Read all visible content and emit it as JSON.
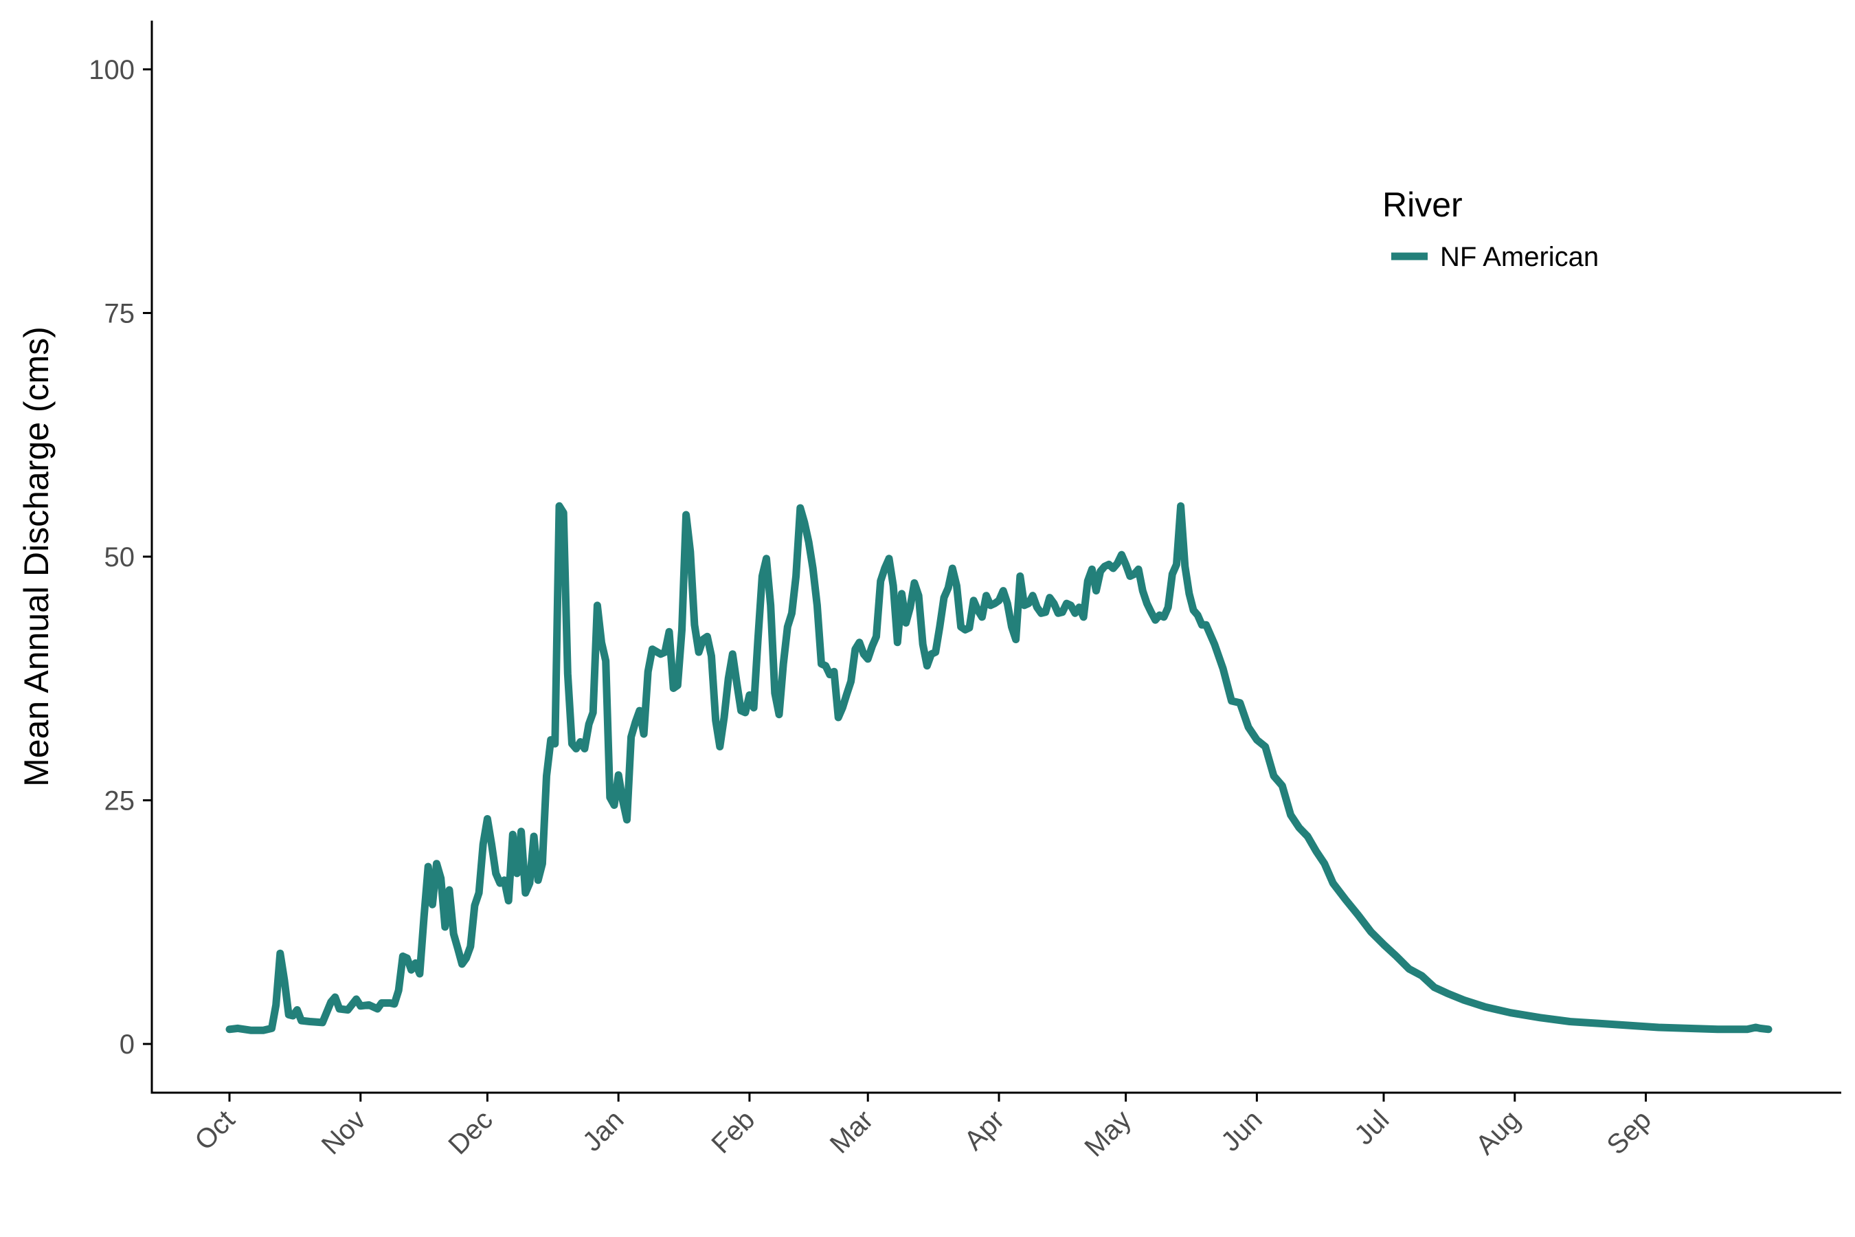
{
  "chart_data": {
    "type": "line",
    "title": "",
    "xlabel": "",
    "ylabel": "Mean Annual Discharge (cms)",
    "x_ticks": [
      "Oct",
      "Nov",
      "Dec",
      "Jan",
      "Feb",
      "Mar",
      "Apr",
      "May",
      "Jun",
      "Jul",
      "Aug",
      "Sep"
    ],
    "y_ticks": [
      0,
      25,
      50,
      75,
      100
    ],
    "xlim": [
      "Oct 1",
      "Sep 30"
    ],
    "ylim": [
      -5,
      105
    ],
    "grid": false,
    "legend": {
      "title": "River",
      "placement": "top-right"
    },
    "series": [
      {
        "name": "NF American",
        "color": "#23807a",
        "points": [
          [
            "Oct 1",
            1.5
          ],
          [
            "Oct 3",
            1.6
          ],
          [
            "Oct 6",
            1.4
          ],
          [
            "Oct 9",
            1.4
          ],
          [
            "Oct 11",
            1.6
          ],
          [
            "Oct 12",
            4
          ],
          [
            "Oct 13",
            9.3
          ],
          [
            "Oct 14",
            6.5
          ],
          [
            "Oct 15",
            3
          ],
          [
            "Oct 16",
            2.9
          ],
          [
            "Oct 17",
            3.5
          ],
          [
            "Oct 18",
            2.4
          ],
          [
            "Oct 20",
            2.3
          ],
          [
            "Oct 23",
            2.2
          ],
          [
            "Oct 25",
            4.3
          ],
          [
            "Oct 26",
            4.8
          ],
          [
            "Oct 27",
            3.6
          ],
          [
            "Oct 29",
            3.5
          ],
          [
            "Oct 31",
            4.6
          ],
          [
            "Nov 1",
            3.9
          ],
          [
            "Nov 3",
            4
          ],
          [
            "Nov 5",
            3.6
          ],
          [
            "Nov 6",
            4.2
          ],
          [
            "Nov 8",
            4.2
          ],
          [
            "Nov 9",
            4.1
          ],
          [
            "Nov 10",
            5.5
          ],
          [
            "Nov 11",
            9
          ],
          [
            "Nov 12",
            8.8
          ],
          [
            "Nov 13",
            7.6
          ],
          [
            "Nov 14",
            8.3
          ],
          [
            "Nov 15",
            7.2
          ],
          [
            "Nov 16",
            13
          ],
          [
            "Nov 17",
            18.2
          ],
          [
            "Nov 18",
            14.3
          ],
          [
            "Nov 19",
            18.5
          ],
          [
            "Nov 20",
            17
          ],
          [
            "Nov 21",
            12
          ],
          [
            "Nov 22",
            15.8
          ],
          [
            "Nov 23",
            11.3
          ],
          [
            "Nov 24",
            9.8
          ],
          [
            "Nov 25",
            8.2
          ],
          [
            "Nov 26",
            8.8
          ],
          [
            "Nov 27",
            10
          ],
          [
            "Nov 28",
            14.2
          ],
          [
            "Nov 29",
            15.5
          ],
          [
            "Nov 30",
            20.5
          ],
          [
            "Dec 1",
            23.1
          ],
          [
            "Dec 2",
            20.5
          ],
          [
            "Dec 3",
            17.5
          ],
          [
            "Dec 4",
            16.5
          ],
          [
            "Dec 5",
            16.8
          ],
          [
            "Dec 6",
            14.7
          ],
          [
            "Dec 7",
            21.5
          ],
          [
            "Dec 8",
            17.5
          ],
          [
            "Dec 9",
            21.8
          ],
          [
            "Dec 10",
            15.5
          ],
          [
            "Dec 11",
            16.5
          ],
          [
            "Dec 12",
            21.3
          ],
          [
            "Dec 13",
            16.8
          ],
          [
            "Dec 14",
            18.5
          ],
          [
            "Dec 15",
            27.5
          ],
          [
            "Dec 16",
            31.2
          ],
          [
            "Dec 17",
            30.8
          ],
          [
            "Dec 18",
            55.2
          ],
          [
            "Dec 19",
            54.5
          ],
          [
            "Dec 20",
            38
          ],
          [
            "Dec 21",
            30.8
          ],
          [
            "Dec 22",
            30.3
          ],
          [
            "Dec 23",
            31
          ],
          [
            "Dec 24",
            30.3
          ],
          [
            "Dec 25",
            32.8
          ],
          [
            "Dec 26",
            34
          ],
          [
            "Dec 27",
            45
          ],
          [
            "Dec 28",
            41.2
          ],
          [
            "Dec 29",
            39.3
          ],
          [
            "Dec 30",
            25.3
          ],
          [
            "Dec 31",
            24.5
          ],
          [
            "Jan 1",
            27.6
          ],
          [
            "Jan 2",
            25
          ],
          [
            "Jan 3",
            23
          ],
          [
            "Jan 4",
            31.5
          ],
          [
            "Jan 5",
            33
          ],
          [
            "Jan 6",
            34.2
          ],
          [
            "Jan 7",
            31.8
          ],
          [
            "Jan 8",
            38.2
          ],
          [
            "Jan 9",
            40.5
          ],
          [
            "Jan 11",
            40
          ],
          [
            "Jan 12",
            40.2
          ],
          [
            "Jan 13",
            42.3
          ],
          [
            "Jan 14",
            36.5
          ],
          [
            "Jan 15",
            36.8
          ],
          [
            "Jan 16",
            42.5
          ],
          [
            "Jan 17",
            54.3
          ],
          [
            "Jan 18",
            50.5
          ],
          [
            "Jan 19",
            43
          ],
          [
            "Jan 20",
            40.2
          ],
          [
            "Jan 21",
            41.5
          ],
          [
            "Jan 22",
            41.8
          ],
          [
            "Jan 23",
            39.8
          ],
          [
            "Jan 24",
            33.2
          ],
          [
            "Jan 25",
            30.5
          ],
          [
            "Jan 26",
            33.5
          ],
          [
            "Jan 27",
            37.5
          ],
          [
            "Jan 28",
            40
          ],
          [
            "Jan 29",
            37
          ],
          [
            "Jan 30",
            34.2
          ],
          [
            "Jan 31",
            34
          ],
          [
            "Feb 1",
            35.8
          ],
          [
            "Feb 2",
            34.5
          ],
          [
            "Feb 3",
            41.5
          ],
          [
            "Feb 4",
            48
          ],
          [
            "Feb 5",
            49.8
          ],
          [
            "Feb 6",
            45
          ],
          [
            "Feb 7",
            36
          ],
          [
            "Feb 8",
            33.8
          ],
          [
            "Feb 9",
            39
          ],
          [
            "Feb 10",
            42.8
          ],
          [
            "Feb 11",
            44.2
          ],
          [
            "Feb 12",
            48
          ],
          [
            "Feb 13",
            55
          ],
          [
            "Feb 14",
            53.5
          ],
          [
            "Feb 15",
            51.5
          ],
          [
            "Feb 16",
            48.8
          ],
          [
            "Feb 17",
            45
          ],
          [
            "Feb 18",
            39
          ],
          [
            "Feb 19",
            38.8
          ],
          [
            "Feb 20",
            37.9
          ],
          [
            "Feb 21",
            38.2
          ],
          [
            "Feb 22",
            33.5
          ],
          [
            "Feb 23",
            34.5
          ],
          [
            "Feb 24",
            35.9
          ],
          [
            "Feb 25",
            37.2
          ],
          [
            "Feb 26",
            40.5
          ],
          [
            "Feb 27",
            41.2
          ],
          [
            "Feb 28",
            40
          ],
          [
            "Mar 1",
            39.5
          ],
          [
            "Mar 2",
            40.8
          ],
          [
            "Mar 3",
            41.8
          ],
          [
            "Mar 4",
            47.5
          ],
          [
            "Mar 5",
            48.8
          ],
          [
            "Mar 6",
            49.8
          ],
          [
            "Mar 7",
            47
          ],
          [
            "Mar 8",
            41.2
          ],
          [
            "Mar 9",
            46.2
          ],
          [
            "Mar 10",
            43.2
          ],
          [
            "Mar 11",
            44.8
          ],
          [
            "Mar 12",
            47.3
          ],
          [
            "Mar 13",
            46
          ],
          [
            "Mar 14",
            41
          ],
          [
            "Mar 15",
            38.8
          ],
          [
            "Mar 16",
            40
          ],
          [
            "Mar 17",
            40.2
          ],
          [
            "Mar 18",
            42.8
          ],
          [
            "Mar 19",
            45.8
          ],
          [
            "Mar 20",
            46.8
          ],
          [
            "Mar 21",
            48.8
          ],
          [
            "Mar 22",
            47
          ],
          [
            "Mar 23",
            42.8
          ],
          [
            "Mar 24",
            42.5
          ],
          [
            "Mar 25",
            42.7
          ],
          [
            "Mar 26",
            45.5
          ],
          [
            "Mar 27",
            44.5
          ],
          [
            "Mar 28",
            43.8
          ],
          [
            "Mar 29",
            46
          ],
          [
            "Mar 30",
            45
          ],
          [
            "Mar 31",
            45.2
          ],
          [
            "Apr 1",
            45.5
          ],
          [
            "Apr 2",
            46.5
          ],
          [
            "Apr 3",
            45.2
          ],
          [
            "Apr 4",
            42.8
          ],
          [
            "Apr 5",
            41.5
          ],
          [
            "Apr 6",
            48
          ],
          [
            "Apr 7",
            45
          ],
          [
            "Apr 8",
            45.2
          ],
          [
            "Apr 9",
            46
          ],
          [
            "Apr 10",
            44.8
          ],
          [
            "Apr 11",
            44.2
          ],
          [
            "Apr 12",
            44.3
          ],
          [
            "Apr 13",
            45.8
          ],
          [
            "Apr 14",
            45.2
          ],
          [
            "Apr 15",
            44.2
          ],
          [
            "Apr 16",
            44.3
          ],
          [
            "Apr 17",
            45.2
          ],
          [
            "Apr 18",
            45
          ],
          [
            "Apr 19",
            44.2
          ],
          [
            "Apr 20",
            44.8
          ],
          [
            "Apr 21",
            43.8
          ],
          [
            "Apr 22",
            47.5
          ],
          [
            "Apr 23",
            48.7
          ],
          [
            "Apr 24",
            46.5
          ],
          [
            "Apr 25",
            48.5
          ],
          [
            "Apr 26",
            49
          ],
          [
            "Apr 27",
            49.2
          ],
          [
            "Apr 28",
            48.8
          ],
          [
            "Apr 29",
            49.3
          ],
          [
            "Apr 30",
            50.2
          ],
          [
            "May 1",
            49.2
          ],
          [
            "May 2",
            48
          ],
          [
            "May 3",
            48.2
          ],
          [
            "May 4",
            48.7
          ],
          [
            "May 5",
            46.5
          ],
          [
            "May 6",
            45.2
          ],
          [
            "May 7",
            44.3
          ],
          [
            "May 8",
            43.5
          ],
          [
            "May 9",
            44
          ],
          [
            "May 10",
            43.8
          ],
          [
            "May 11",
            44.8
          ],
          [
            "May 12",
            48.2
          ],
          [
            "May 13",
            49.2
          ],
          [
            "May 14",
            55.2
          ],
          [
            "May 15",
            49
          ],
          [
            "May 16",
            46.2
          ],
          [
            "May 17",
            44.5
          ],
          [
            "May 18",
            44
          ],
          [
            "May 19",
            43
          ],
          [
            "May 20",
            43
          ],
          [
            "May 22",
            41
          ],
          [
            "May 24",
            38.5
          ],
          [
            "May 26",
            35.2
          ],
          [
            "May 28",
            35
          ],
          [
            "May 30",
            32.5
          ],
          [
            "Jun 1",
            31.2
          ],
          [
            "Jun 3",
            30.5
          ],
          [
            "Jun 5",
            27.5
          ],
          [
            "Jun 7",
            26.5
          ],
          [
            "Jun 9",
            23.5
          ],
          [
            "Jun 11",
            22.2
          ],
          [
            "Jun 13",
            21.3
          ],
          [
            "Jun 15",
            19.8
          ],
          [
            "Jun 17",
            18.5
          ],
          [
            "Jun 19",
            16.5
          ],
          [
            "Jun 22",
            14.8
          ],
          [
            "Jun 25",
            13.2
          ],
          [
            "Jun 28",
            11.5
          ],
          [
            "Jul 1",
            10.2
          ],
          [
            "Jul 4",
            9
          ],
          [
            "Jul 7",
            7.7
          ],
          [
            "Jul 10",
            7
          ],
          [
            "Jul 13",
            5.8
          ],
          [
            "Jul 16",
            5.2
          ],
          [
            "Jul 20",
            4.5
          ],
          [
            "Jul 25",
            3.8
          ],
          [
            "Jul 31",
            3.2
          ],
          [
            "Aug 7",
            2.7
          ],
          [
            "Aug 14",
            2.3
          ],
          [
            "Aug 21",
            2.1
          ],
          [
            "Aug 28",
            1.9
          ],
          [
            "Sep 4",
            1.7
          ],
          [
            "Sep 11",
            1.6
          ],
          [
            "Sep 18",
            1.5
          ],
          [
            "Sep 25",
            1.5
          ],
          [
            "Sep 27",
            1.7
          ],
          [
            "Sep 28",
            1.6
          ],
          [
            "Sep 30",
            1.5
          ]
        ]
      }
    ]
  }
}
